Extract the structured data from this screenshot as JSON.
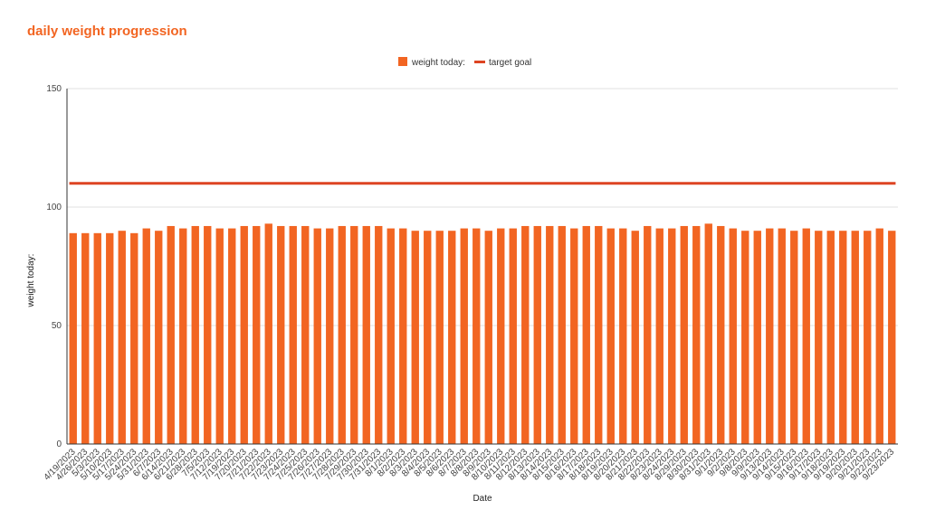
{
  "chart_data": {
    "type": "bar",
    "title": "daily weight progression",
    "xlabel": "Date",
    "ylabel": "weight today:",
    "ylim": [
      0,
      150
    ],
    "yticks": [
      "0",
      "50",
      "100",
      "150"
    ],
    "grid": true,
    "legend_position": "top-center",
    "colors": {
      "bar": "#f26522",
      "line": "#dd4422",
      "title": "#f26522"
    },
    "categories": [
      "4/19/2023",
      "4/26/2023",
      "5/3/2023",
      "5/10/2023",
      "5/17/2023",
      "5/24/2023",
      "5/31/2023",
      "6/7/2023",
      "6/14/2023",
      "6/21/2023",
      "6/28/2023",
      "7/5/2023",
      "7/12/2023",
      "7/19/2023",
      "7/20/2023",
      "7/21/2023",
      "7/22/2023",
      "7/23/2023",
      "7/24/2023",
      "7/25/2023",
      "7/26/2023",
      "7/27/2023",
      "7/28/2023",
      "7/29/2023",
      "7/30/2023",
      "7/31/2023",
      "8/1/2023",
      "8/2/2023",
      "8/3/2023",
      "8/4/2023",
      "8/5/2023",
      "8/6/2023",
      "8/7/2023",
      "8/8/2023",
      "8/9/2023",
      "8/10/2023",
      "8/11/2023",
      "8/12/2023",
      "8/13/2023",
      "8/14/2023",
      "8/15/2023",
      "8/16/2023",
      "8/17/2023",
      "8/18/2023",
      "8/19/2023",
      "8/20/2023",
      "8/21/2023",
      "8/22/2023",
      "8/23/2023",
      "8/24/2023",
      "8/29/2023",
      "8/30/2023",
      "8/31/2023",
      "9/1/2023",
      "9/2/2023",
      "9/8/2023",
      "9/9/2023",
      "9/13/2023",
      "9/14/2023",
      "9/15/2023",
      "9/16/2023",
      "9/17/2023",
      "9/18/2023",
      "9/19/2023",
      "9/20/2023",
      "9/21/2023",
      "9/22/2023",
      "9/23/2023"
    ],
    "series": [
      {
        "name": "weight today:",
        "type": "bar",
        "values": [
          89,
          89,
          89,
          89,
          90,
          89,
          91,
          90,
          92,
          91,
          92,
          92,
          91,
          91,
          92,
          92,
          93,
          92,
          92,
          92,
          91,
          91,
          92,
          92,
          92,
          92,
          91,
          91,
          90,
          90,
          90,
          90,
          91,
          91,
          90,
          91,
          91,
          92,
          92,
          92,
          92,
          91,
          92,
          92,
          91,
          91,
          90,
          92,
          91,
          91,
          92,
          92,
          93,
          92,
          91,
          90,
          90,
          91,
          91,
          90,
          91,
          90,
          90,
          90,
          90,
          90,
          91,
          90
        ]
      },
      {
        "name": "target goal",
        "type": "line",
        "value": 110
      }
    ]
  }
}
